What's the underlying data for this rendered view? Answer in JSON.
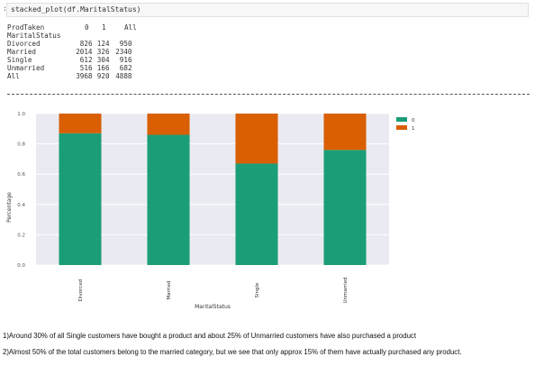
{
  "cell": {
    "prompt": ":",
    "code": "stacked_plot(df.MaritalStatus)"
  },
  "crosstab": {
    "col_header_label": "ProdTaken",
    "columns": [
      "0",
      "1",
      "All"
    ],
    "row_header_label": "MaritalStatus",
    "rows": [
      {
        "label": "Divorced",
        "values": [
          "826",
          "124",
          "950"
        ]
      },
      {
        "label": "Married",
        "values": [
          "2014",
          "326",
          "2340"
        ]
      },
      {
        "label": "Single",
        "values": [
          "612",
          "304",
          "916"
        ]
      },
      {
        "label": "Unmarried",
        "values": [
          "516",
          "166",
          "682"
        ]
      },
      {
        "label": "All",
        "values": [
          "3968",
          "920",
          "4888"
        ]
      }
    ],
    "separator": "------------------------------------------------------------------------------------------------------------------------"
  },
  "chart_data": {
    "type": "bar",
    "stacked": true,
    "categories": [
      "Divorced",
      "Married",
      "Single",
      "Unmarried"
    ],
    "series": [
      {
        "name": "0",
        "values": [
          0.87,
          0.86,
          0.67,
          0.76
        ],
        "color": "#1b9e77"
      },
      {
        "name": "1",
        "values": [
          0.13,
          0.14,
          0.33,
          0.24
        ],
        "color": "#d95f02"
      }
    ],
    "xlabel": "MaritalStatus",
    "ylabel": "Percentage",
    "ylim": [
      0,
      1.0
    ],
    "yticks": [
      "0.0",
      "0.2",
      "0.4",
      "0.6",
      "0.8",
      "1.0"
    ],
    "grid": true,
    "legend": "outside-top-right"
  },
  "notes": [
    "1)Around 30% of all Single customers have bought a product and about 25% of Unmarried customers have also purchased a product",
    "2)Almost 50% of the total customers belong to the married category, but we see that only approx 15% of them have actually purchased any product."
  ]
}
